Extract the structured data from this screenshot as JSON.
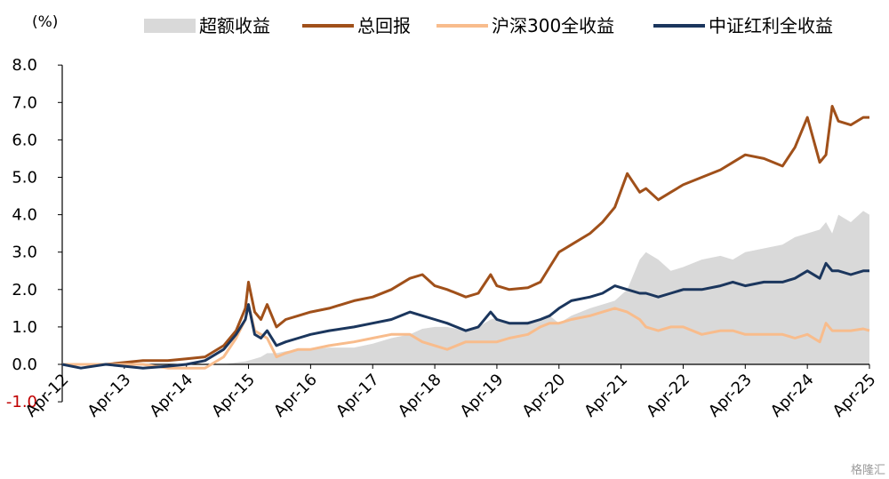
{
  "chart_data": {
    "type": "line",
    "unit_label": "(%)",
    "y_ticks": [
      "8.0",
      "7.0",
      "6.0",
      "5.0",
      "4.0",
      "3.0",
      "2.0",
      "1.0",
      "0.0",
      "-1.0"
    ],
    "ylim": [
      -1.0,
      8.0
    ],
    "x_ticks": [
      "Apr-12",
      "Apr-13",
      "Apr-14",
      "Apr-15",
      "Apr-16",
      "Apr-17",
      "Apr-18",
      "Apr-19",
      "Apr-20",
      "Apr-21",
      "Apr-22",
      "Apr-23",
      "Apr-24",
      "Apr-25"
    ],
    "x": [
      2012.3,
      2012.6,
      2013.0,
      2013.3,
      2013.6,
      2014.0,
      2014.3,
      2014.6,
      2014.9,
      2015.1,
      2015.25,
      2015.3,
      2015.4,
      2015.5,
      2015.6,
      2015.75,
      2015.9,
      2016.1,
      2016.3,
      2016.6,
      2017.0,
      2017.3,
      2017.6,
      2017.9,
      2018.1,
      2018.3,
      2018.5,
      2018.8,
      2019.0,
      2019.2,
      2019.3,
      2019.5,
      2019.8,
      2020.0,
      2020.15,
      2020.3,
      2020.5,
      2020.8,
      2021.0,
      2021.2,
      2021.4,
      2021.6,
      2021.7,
      2021.9,
      2022.1,
      2022.3,
      2022.6,
      2022.9,
      2023.1,
      2023.3,
      2023.6,
      2023.9,
      2024.1,
      2024.3,
      2024.5,
      2024.6,
      2024.7,
      2024.8,
      2025.0,
      2025.2,
      2025.3
    ],
    "series": [
      {
        "name": "超额收益",
        "style": "area",
        "color": "#d9d9d9",
        "values": [
          0.0,
          0.0,
          0.0,
          0.0,
          0.0,
          0.0,
          0.0,
          0.0,
          0.0,
          0.05,
          0.08,
          0.1,
          0.15,
          0.2,
          0.3,
          0.3,
          0.35,
          0.4,
          0.4,
          0.45,
          0.45,
          0.55,
          0.7,
          0.8,
          0.95,
          1.0,
          1.0,
          0.9,
          1.0,
          1.2,
          1.25,
          1.1,
          1.15,
          1.2,
          1.3,
          1.1,
          1.3,
          1.5,
          1.6,
          1.7,
          2.0,
          2.8,
          3.0,
          2.8,
          2.5,
          2.6,
          2.8,
          2.9,
          2.8,
          3.0,
          3.1,
          3.2,
          3.4,
          3.5,
          3.6,
          3.8,
          3.5,
          4.0,
          3.8,
          4.1,
          4.0
        ]
      },
      {
        "name": "总回报",
        "style": "line",
        "color": "#a0501a",
        "values": [
          0.0,
          0.0,
          0.0,
          0.05,
          0.1,
          0.1,
          0.15,
          0.2,
          0.5,
          0.9,
          1.5,
          2.2,
          1.4,
          1.2,
          1.6,
          1.0,
          1.2,
          1.3,
          1.4,
          1.5,
          1.7,
          1.8,
          2.0,
          2.3,
          2.4,
          2.1,
          2.0,
          1.8,
          1.9,
          2.4,
          2.1,
          2.0,
          2.05,
          2.2,
          2.6,
          3.0,
          3.2,
          3.5,
          3.8,
          4.2,
          5.1,
          4.6,
          4.7,
          4.4,
          4.6,
          4.8,
          5.0,
          5.2,
          5.4,
          5.6,
          5.5,
          5.3,
          5.8,
          6.6,
          5.4,
          5.6,
          6.9,
          6.5,
          6.4,
          6.6,
          6.6
        ]
      },
      {
        "name": "沪深300全收益",
        "style": "line",
        "color": "#f8bc8c",
        "values": [
          0.0,
          0.0,
          0.0,
          0.0,
          0.0,
          -0.1,
          -0.1,
          -0.1,
          0.2,
          0.7,
          1.2,
          1.6,
          0.9,
          0.8,
          0.7,
          0.2,
          0.3,
          0.4,
          0.4,
          0.5,
          0.6,
          0.7,
          0.8,
          0.8,
          0.6,
          0.5,
          0.4,
          0.6,
          0.6,
          0.6,
          0.6,
          0.7,
          0.8,
          1.0,
          1.1,
          1.1,
          1.2,
          1.3,
          1.4,
          1.5,
          1.4,
          1.2,
          1.0,
          0.9,
          1.0,
          1.0,
          0.8,
          0.9,
          0.9,
          0.8,
          0.8,
          0.8,
          0.7,
          0.8,
          0.6,
          1.1,
          0.9,
          0.9,
          0.9,
          0.95,
          0.9
        ]
      },
      {
        "name": "中证红利全收益",
        "style": "line",
        "color": "#1b365d",
        "values": [
          0.0,
          -0.1,
          0.0,
          -0.05,
          -0.1,
          -0.05,
          0.0,
          0.1,
          0.4,
          0.8,
          1.2,
          1.6,
          0.8,
          0.7,
          0.9,
          0.5,
          0.6,
          0.7,
          0.8,
          0.9,
          1.0,
          1.1,
          1.2,
          1.4,
          1.3,
          1.2,
          1.1,
          0.9,
          1.0,
          1.4,
          1.2,
          1.1,
          1.1,
          1.2,
          1.3,
          1.5,
          1.7,
          1.8,
          1.9,
          2.1,
          2.0,
          1.9,
          1.9,
          1.8,
          1.9,
          2.0,
          2.0,
          2.1,
          2.2,
          2.1,
          2.2,
          2.2,
          2.3,
          2.5,
          2.3,
          2.7,
          2.5,
          2.5,
          2.4,
          2.5,
          2.5
        ]
      }
    ],
    "legend_position": "top",
    "grid": false
  },
  "watermark": "格隆汇"
}
